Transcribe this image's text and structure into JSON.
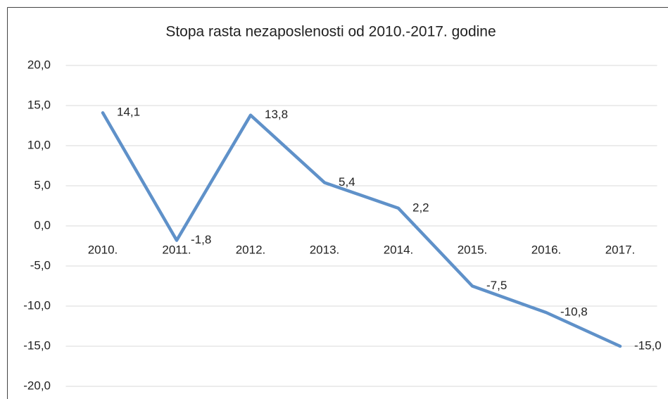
{
  "chart_data": {
    "type": "line",
    "title": "Stopa rasta nezaposlenosti od 2010.-2017. godine",
    "categories": [
      "2010.",
      "2011.",
      "2012.",
      "2013.",
      "2014.",
      "2015.",
      "2016.",
      "2017."
    ],
    "series": [
      {
        "color": "#5f91c9",
        "values": [
          14.1,
          -1.8,
          13.8,
          5.4,
          2.2,
          -7.5,
          -10.8,
          -15.0
        ],
        "value_labels": [
          "14,1",
          "-1,8",
          "13,8",
          "5,4",
          "2,2",
          "-7,5",
          "-10,8",
          "-15,0"
        ]
      }
    ],
    "ylim": [
      -20,
      20
    ],
    "yticks": [
      {
        "value": -20,
        "label": "-20,0"
      },
      {
        "value": -15,
        "label": "-15,0"
      },
      {
        "value": -10,
        "label": "-10,0"
      },
      {
        "value": -5,
        "label": "-5,0"
      },
      {
        "value": 0,
        "label": "0,0"
      },
      {
        "value": 5,
        "label": "5,0"
      },
      {
        "value": 10,
        "label": "10,0"
      },
      {
        "value": 15,
        "label": "15,0"
      },
      {
        "value": 20,
        "label": "20,0"
      }
    ],
    "grid": true
  }
}
